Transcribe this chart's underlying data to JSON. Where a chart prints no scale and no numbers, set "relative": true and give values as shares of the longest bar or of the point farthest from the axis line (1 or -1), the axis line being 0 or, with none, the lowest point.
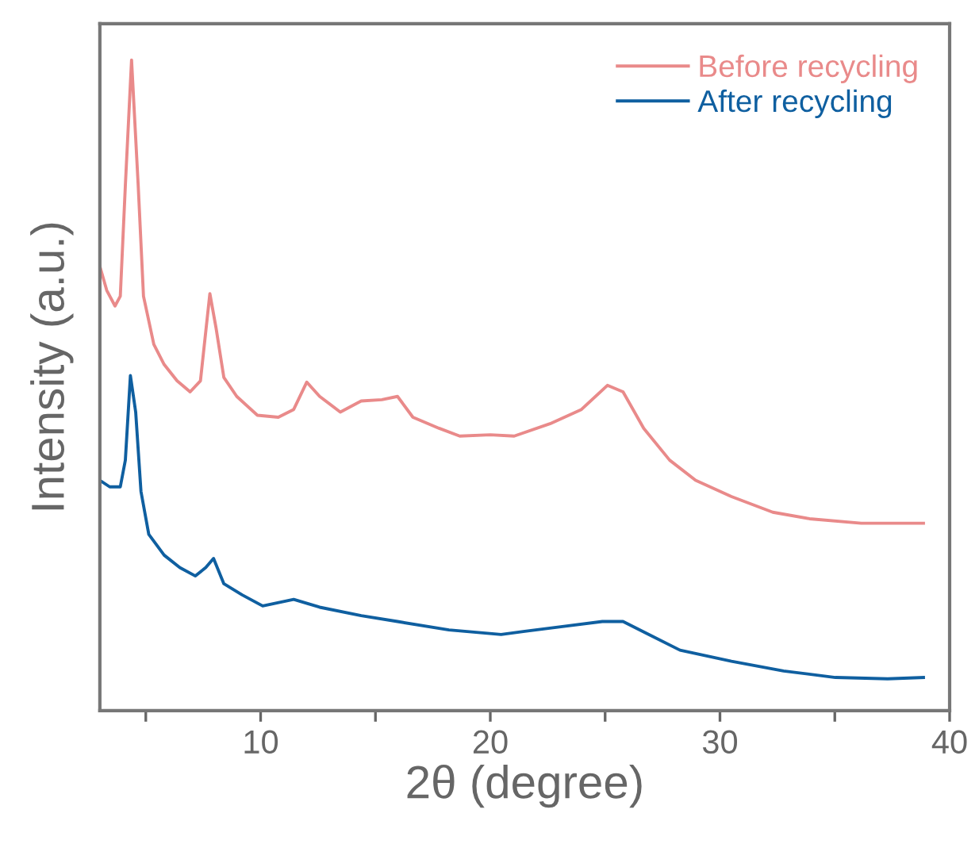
{
  "chart_data": {
    "type": "line",
    "xlabel": "2θ (degree)",
    "ylabel": "Intensity (a.u.)",
    "relative": true,
    "xlim": [
      3,
      40
    ],
    "xticks": [
      {
        "value": 5,
        "label": null
      },
      10,
      {
        "value": 15,
        "label": null
      },
      20,
      {
        "value": 25,
        "label": null
      },
      30,
      {
        "value": 35,
        "label": null
      },
      40
    ],
    "tick_labels": "x",
    "grid": false,
    "legend": "top right",
    "series": [
      {
        "name": "Before recycling",
        "color": "#e98a8a",
        "x": [
          3.0,
          3.3,
          3.66,
          3.89,
          4.11,
          4.38,
          4.67,
          4.9,
          5.35,
          5.8,
          6.36,
          6.93,
          7.38,
          7.79,
          8.06,
          8.4,
          8.96,
          9.86,
          10.77,
          11.44,
          12.01,
          12.57,
          13.47,
          14.38,
          15.28,
          15.96,
          16.63,
          17.77,
          18.67,
          20.0,
          21.04,
          22.6,
          23.97,
          25.1,
          25.78,
          26.68,
          27.81,
          28.94,
          30.5,
          32.3,
          33.9,
          36.15,
          38.86
        ],
        "values": [
          0.683,
          0.646,
          0.622,
          0.637,
          0.807,
          1.0,
          0.807,
          0.637,
          0.563,
          0.532,
          0.507,
          0.49,
          0.507,
          0.641,
          0.588,
          0.512,
          0.483,
          0.454,
          0.451,
          0.463,
          0.505,
          0.483,
          0.459,
          0.476,
          0.478,
          0.483,
          0.451,
          0.434,
          0.422,
          0.424,
          0.422,
          0.441,
          0.463,
          0.5,
          0.49,
          0.434,
          0.385,
          0.354,
          0.329,
          0.305,
          0.295,
          0.288,
          0.288
        ]
      },
      {
        "name": "After recycling",
        "color": "#0f5fa0",
        "x": [
          3.0,
          3.43,
          3.89,
          4.11,
          4.33,
          4.56,
          4.79,
          5.13,
          5.8,
          6.48,
          7.16,
          7.61,
          7.95,
          8.4,
          9.19,
          10.09,
          11.44,
          12.57,
          14.38,
          15.96,
          18.2,
          20.47,
          21.5,
          23.07,
          24.88,
          25.78,
          26.91,
          28.26,
          30.5,
          32.77,
          35.03,
          37.3,
          38.86
        ],
        "values": [
          0.354,
          0.344,
          0.344,
          0.385,
          0.515,
          0.459,
          0.337,
          0.271,
          0.239,
          0.22,
          0.207,
          0.22,
          0.234,
          0.195,
          0.178,
          0.161,
          0.171,
          0.159,
          0.146,
          0.137,
          0.124,
          0.117,
          0.122,
          0.129,
          0.137,
          0.137,
          0.117,
          0.093,
          0.076,
          0.061,
          0.051,
          0.049,
          0.051
        ]
      }
    ]
  }
}
